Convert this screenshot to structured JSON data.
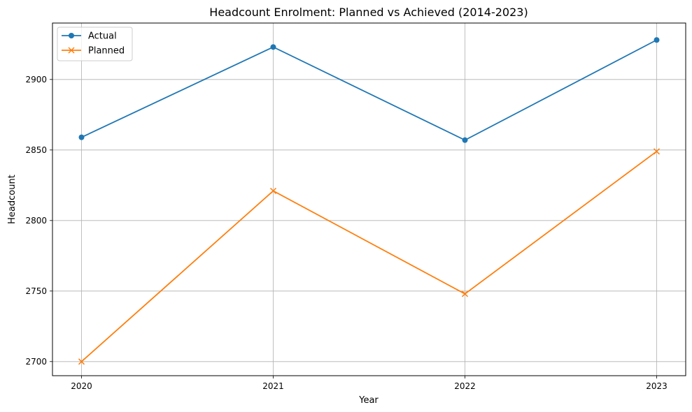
{
  "chart_data": {
    "type": "line",
    "title": "Headcount Enrolment: Planned vs Achieved (2014-2023)",
    "xlabel": "Year",
    "ylabel": "Headcount",
    "x": [
      "2020",
      "2021",
      "2022",
      "2023"
    ],
    "ylim": [
      2690,
      2940
    ],
    "yticks": [
      2700,
      2750,
      2800,
      2850,
      2900
    ],
    "grid": true,
    "legend_position": "top-left",
    "series": [
      {
        "name": "Actual",
        "color": "#1f77b4",
        "marker": "circle",
        "values": [
          2859,
          2923,
          2857,
          2928
        ]
      },
      {
        "name": "Planned",
        "color": "#ff7f0e",
        "marker": "x",
        "values": [
          2700,
          2821,
          2748,
          2849
        ]
      }
    ]
  }
}
